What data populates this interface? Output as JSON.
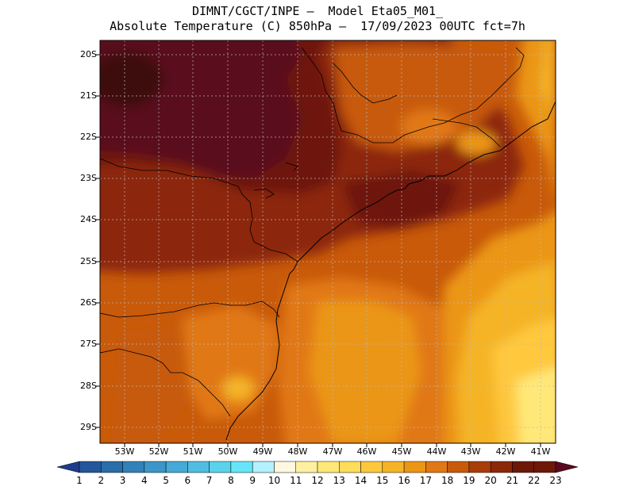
{
  "title": {
    "line1": "DIMNT/CGCT/INPE –  Model Eta05_M01_",
    "line2": "Absolute Temperature (C) 850hPa –  17/09/2023 00UTC fct=7h"
  },
  "axes": {
    "lat_labels": [
      "20S",
      "21S",
      "22S",
      "23S",
      "24S",
      "25S",
      "26S",
      "27S",
      "28S",
      "29S"
    ],
    "lon_labels": [
      "53W",
      "52W",
      "51W",
      "50W",
      "49W",
      "48W",
      "47W",
      "46W",
      "45W",
      "44W",
      "43W",
      "42W",
      "41W"
    ]
  },
  "colorbar": {
    "labels": [
      "1",
      "2",
      "3",
      "4",
      "5",
      "6",
      "7",
      "8",
      "9",
      "10",
      "11",
      "12",
      "13",
      "14",
      "15",
      "16",
      "17",
      "18",
      "19",
      "20",
      "21",
      "22",
      "23"
    ],
    "colors": [
      "#1e3c8c",
      "#24569c",
      "#2a6ea8",
      "#3282b8",
      "#3c96c8",
      "#46aad6",
      "#50bee0",
      "#5ad2ec",
      "#64e6f8",
      "#b4f0ff",
      "#fff8e0",
      "#fff0a0",
      "#ffe878",
      "#ffdc5a",
      "#ffc83c",
      "#f5b428",
      "#eb9614",
      "#e17814",
      "#c85a0a",
      "#aa3c0a",
      "#8c2808",
      "#6e1808",
      "#5a0a1e"
    ]
  }
}
